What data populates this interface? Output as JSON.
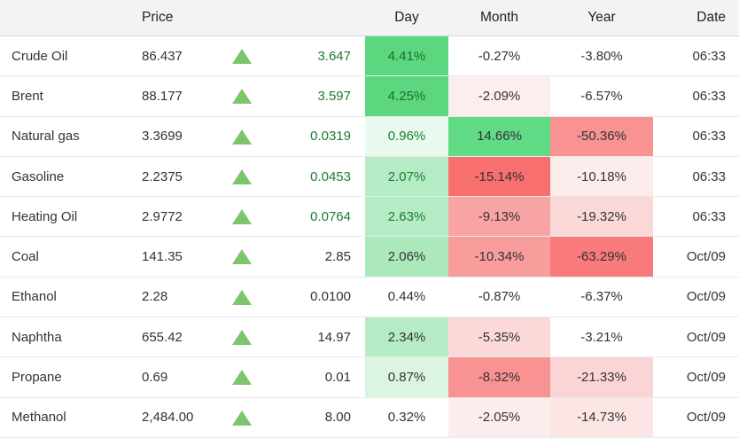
{
  "table": {
    "headers": {
      "name": "",
      "price": "Price",
      "arrow": "",
      "change": "",
      "day": "Day",
      "month": "Month",
      "year": "Year",
      "date": "Date"
    },
    "rows": [
      {
        "name": "Crude Oil",
        "price": "86.437",
        "direction": "up",
        "change": "3.647",
        "live": true,
        "day": {
          "text": "4.41%",
          "bg": "#5cd77f",
          "fg": "#17702e"
        },
        "month": {
          "text": "-0.27%",
          "bg": "#ffffff"
        },
        "year": {
          "text": "-3.80%",
          "bg": "#ffffff"
        },
        "date": "06:33"
      },
      {
        "name": "Brent",
        "price": "88.177",
        "direction": "up",
        "change": "3.597",
        "live": true,
        "day": {
          "text": "4.25%",
          "bg": "#5cd77f",
          "fg": "#17702e"
        },
        "month": {
          "text": "-2.09%",
          "bg": "#fdeeee"
        },
        "year": {
          "text": "-6.57%",
          "bg": "#ffffff"
        },
        "date": "06:33"
      },
      {
        "name": "Natural gas",
        "price": "3.3699",
        "direction": "up",
        "change": "0.0319",
        "live": true,
        "day": {
          "text": "0.96%",
          "bg": "#e8f9ee",
          "fg": "#1e7b33"
        },
        "month": {
          "text": "14.66%",
          "bg": "#61da85"
        },
        "year": {
          "text": "-50.36%",
          "bg": "#f99292"
        },
        "date": "06:33"
      },
      {
        "name": "Gasoline",
        "price": "2.2375",
        "direction": "up",
        "change": "0.0453",
        "live": true,
        "day": {
          "text": "2.07%",
          "bg": "#b6ecc5",
          "fg": "#1e7b33"
        },
        "month": {
          "text": "-15.14%",
          "bg": "#f76f6f"
        },
        "year": {
          "text": "-10.18%",
          "bg": "#fcecec"
        },
        "date": "06:33"
      },
      {
        "name": "Heating Oil",
        "price": "2.9772",
        "direction": "up",
        "change": "0.0764",
        "live": true,
        "day": {
          "text": "2.63%",
          "bg": "#b6ecc5",
          "fg": "#1e7b33"
        },
        "month": {
          "text": "-9.13%",
          "bg": "#f9a4a4"
        },
        "year": {
          "text": "-19.32%",
          "bg": "#fbd8d8"
        },
        "date": "06:33"
      },
      {
        "name": "Coal",
        "price": "141.35",
        "direction": "up",
        "change": "2.85",
        "live": false,
        "day": {
          "text": "2.06%",
          "bg": "#abe9bd",
          "fg": "#333333"
        },
        "month": {
          "text": "-10.34%",
          "bg": "#f99c9c"
        },
        "year": {
          "text": "-63.29%",
          "bg": "#f87a7a"
        },
        "date": "Oct/09"
      },
      {
        "name": "Ethanol",
        "price": "2.28",
        "direction": "up",
        "change": "0.0100",
        "live": false,
        "day": {
          "text": "0.44%",
          "bg": "#ffffff",
          "fg": "#333333"
        },
        "month": {
          "text": "-0.87%",
          "bg": "#ffffff"
        },
        "year": {
          "text": "-6.37%",
          "bg": "#ffffff"
        },
        "date": "Oct/09"
      },
      {
        "name": "Naphtha",
        "price": "655.42",
        "direction": "up",
        "change": "14.97",
        "live": false,
        "day": {
          "text": "2.34%",
          "bg": "#b6ecc5",
          "fg": "#333333"
        },
        "month": {
          "text": "-5.35%",
          "bg": "#fbd9d9"
        },
        "year": {
          "text": "-3.21%",
          "bg": "#ffffff"
        },
        "date": "Oct/09"
      },
      {
        "name": "Propane",
        "price": "0.69",
        "direction": "up",
        "change": "0.01",
        "live": false,
        "day": {
          "text": "0.87%",
          "bg": "#dcf5e3",
          "fg": "#333333"
        },
        "month": {
          "text": "-8.32%",
          "bg": "#f99292"
        },
        "year": {
          "text": "-21.33%",
          "bg": "#fbd5d5"
        },
        "date": "Oct/09"
      },
      {
        "name": "Methanol",
        "price": "2,484.00",
        "direction": "up",
        "change": "8.00",
        "live": false,
        "day": {
          "text": "0.32%",
          "bg": "#ffffff",
          "fg": "#333333"
        },
        "month": {
          "text": "-2.05%",
          "bg": "#fdecec"
        },
        "year": {
          "text": "-14.73%",
          "bg": "#fce5e5"
        },
        "date": "Oct/09"
      }
    ]
  },
  "colors": {
    "header_bg": "#f3f3f3",
    "row_border": "#e9e9e9",
    "text": "#333333",
    "positive_text_green": "#1e7b33",
    "arrow_green": "#7cc56d",
    "strong_green": "#5cd77f",
    "strong_red": "#f76f6f"
  },
  "icons": {
    "up_arrow": "triangle-up"
  }
}
